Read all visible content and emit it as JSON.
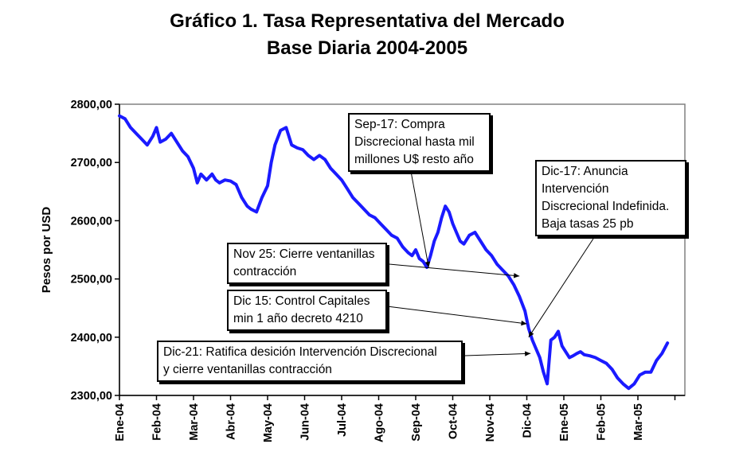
{
  "chart_data": {
    "type": "line",
    "title": "Gráfico 1. Tasa Representativa del Mercado",
    "subtitle": "Base Diaria 2004-2005",
    "ylabel": "Pesos por USD",
    "xlabel": "",
    "ylim": [
      2300,
      2800
    ],
    "yticks": [
      "2300,00",
      "2400,00",
      "2500,00",
      "2600,00",
      "2700,00",
      "2800,00"
    ],
    "xticks": [
      "Ene-04",
      "Feb-04",
      "Mar-04",
      "Abr-04",
      "May-04",
      "Jun-04",
      "Jul-04",
      "Ago-04",
      "Sep-04",
      "Oct-04",
      "Nov-04",
      "Dic-04",
      "Ene-05",
      "Feb-05",
      "Mar-05"
    ],
    "grid": false,
    "legend": "none",
    "line_color": "#1a1aff",
    "series": [
      {
        "x": [
          0,
          0.15,
          0.3,
          0.45,
          0.6,
          0.75,
          0.9,
          1.0,
          1.1,
          1.25,
          1.4,
          1.55,
          1.7,
          1.85,
          2.0,
          2.1,
          2.2,
          2.35,
          2.5,
          2.6,
          2.7,
          2.85,
          3.0,
          3.15,
          3.3,
          3.45,
          3.55,
          3.7,
          3.85,
          4.0,
          4.1,
          4.2,
          4.35,
          4.5,
          4.65,
          4.8,
          4.95,
          5.1,
          5.25,
          5.4,
          5.55,
          5.7,
          5.85,
          6.0,
          6.15,
          6.3,
          6.45,
          6.6,
          6.75,
          6.9,
          7.05,
          7.2,
          7.35,
          7.5,
          7.65,
          7.8,
          7.9,
          8.0,
          8.1,
          8.2,
          8.3,
          8.4,
          8.5,
          8.6,
          8.7,
          8.8,
          8.9,
          9.0,
          9.1,
          9.2,
          9.3,
          9.45,
          9.6,
          9.75,
          9.9,
          10.05,
          10.2,
          10.35,
          10.5,
          10.65,
          10.8,
          10.95,
          11.05,
          11.15,
          11.25,
          11.35,
          11.45,
          11.55,
          11.65,
          11.75,
          11.85,
          11.95,
          12.05,
          12.15,
          12.25,
          12.35,
          12.45,
          12.55,
          12.7,
          12.85,
          13.0,
          13.15,
          13.3,
          13.45,
          13.6,
          13.75,
          13.9,
          14.05,
          14.2,
          14.35,
          14.5,
          14.65,
          14.8
        ],
        "values": [
          2780,
          2775,
          2760,
          2750,
          2740,
          2730,
          2745,
          2760,
          2735,
          2740,
          2750,
          2735,
          2720,
          2710,
          2690,
          2665,
          2680,
          2670,
          2680,
          2670,
          2665,
          2670,
          2668,
          2662,
          2640,
          2625,
          2620,
          2615,
          2640,
          2660,
          2700,
          2730,
          2755,
          2760,
          2730,
          2725,
          2722,
          2712,
          2705,
          2712,
          2705,
          2690,
          2680,
          2670,
          2655,
          2640,
          2630,
          2620,
          2610,
          2605,
          2595,
          2585,
          2575,
          2570,
          2555,
          2545,
          2540,
          2550,
          2535,
          2530,
          2520,
          2540,
          2565,
          2580,
          2605,
          2625,
          2615,
          2595,
          2580,
          2565,
          2560,
          2575,
          2580,
          2565,
          2550,
          2540,
          2525,
          2515,
          2505,
          2490,
          2470,
          2445,
          2415,
          2395,
          2380,
          2365,
          2340,
          2320,
          2395,
          2400,
          2410,
          2385,
          2375,
          2365,
          2368,
          2372,
          2375,
          2370,
          2368,
          2365,
          2360,
          2355,
          2345,
          2330,
          2320,
          2312,
          2320,
          2335,
          2340,
          2340,
          2360,
          2372,
          2390
        ]
      }
    ],
    "annotations": [
      {
        "lines": [
          "Sep-17: Compra",
          "Discrecional hasta mil",
          "millones U$ resto año"
        ],
        "target_x": 8.35,
        "target_y": 2520
      },
      {
        "lines": [
          "Dic-17: Anuncia",
          "Intervención",
          "Discrecional Indefinida.",
          "Baja tasas 25 pb"
        ],
        "target_x": 11.05,
        "target_y": 2400
      },
      {
        "lines": [
          "Nov 25: Cierre ventanillas",
          "contracción"
        ],
        "target_x": 10.8,
        "target_y": 2505
      },
      {
        "lines": [
          "Dic 15: Control Capitales",
          "min 1 año decreto 4210"
        ],
        "target_x": 11.0,
        "target_y": 2423
      },
      {
        "lines": [
          "Dic-21: Ratifica desición Intervención Discrecional",
          "y cierre ventanillas contracción"
        ],
        "target_x": 11.1,
        "target_y": 2372
      }
    ]
  }
}
